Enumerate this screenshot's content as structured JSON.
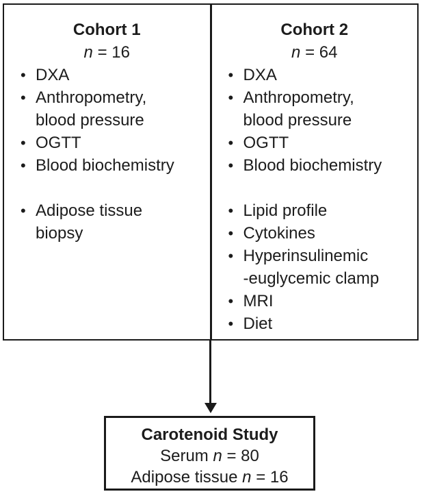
{
  "diagram": {
    "bullet_char": "•",
    "colors": {
      "border": "#1a1a1a",
      "text": "#1c1c1c",
      "background": "#ffffff"
    },
    "cohort1": {
      "title": "Cohort 1",
      "n_italic": "n",
      "n_rest": " = 16",
      "baseline_items": [
        "DXA",
        "Anthropometry,\nblood pressure",
        "OGTT",
        "Blood biochemistry"
      ],
      "additional_items": [
        "Adipose tissue\nbiopsy"
      ]
    },
    "cohort2": {
      "title": "Cohort 2",
      "n_italic": "n",
      "n_rest": " = 64",
      "baseline_items": [
        "DXA",
        "Anthropometry,\nblood pressure",
        "OGTT",
        "Blood biochemistry"
      ],
      "additional_items": [
        "Lipid profile",
        "Cytokines",
        "Hyperinsulinemic\n-euglycemic clamp",
        "MRI",
        "Diet"
      ]
    },
    "result_box": {
      "title": "Carotenoid Study",
      "line2": [
        "Serum ",
        "n",
        " = 80"
      ],
      "line3": [
        "Adipose tissue ",
        "n",
        " = 16"
      ]
    }
  }
}
